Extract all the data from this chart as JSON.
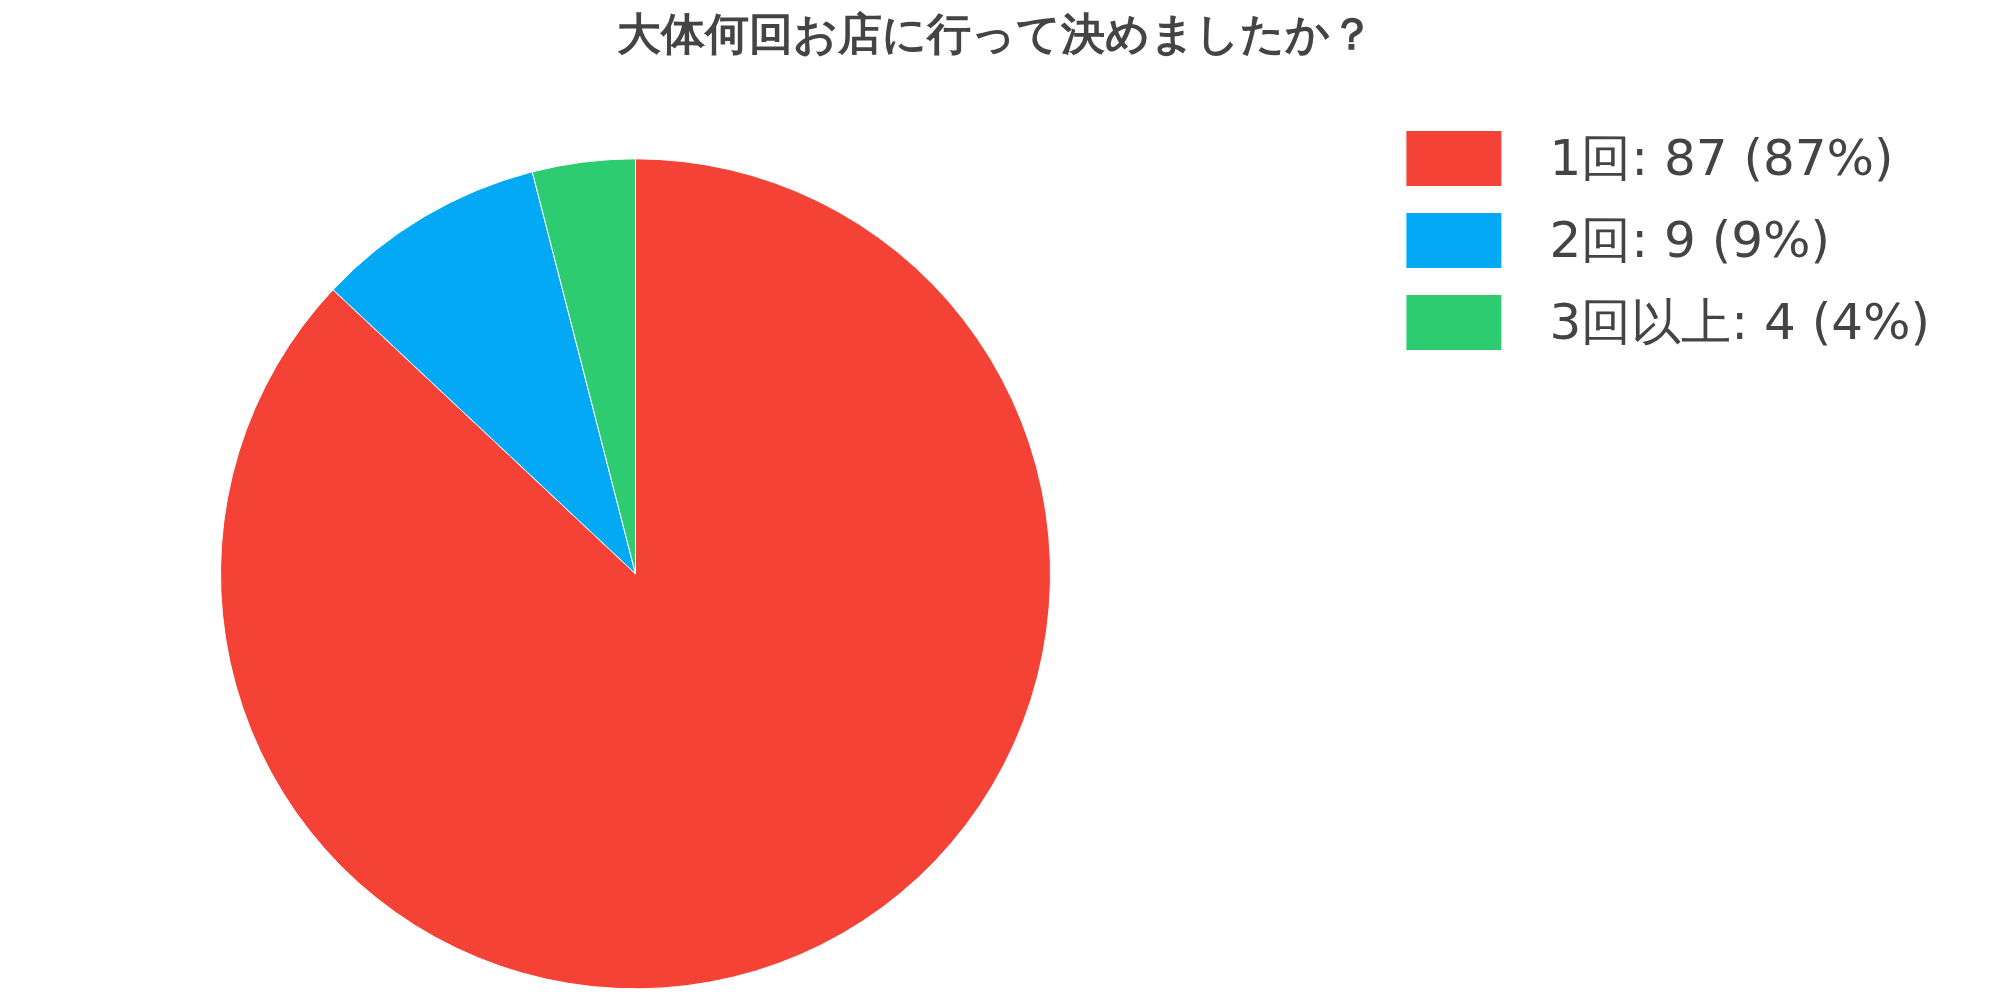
{
  "chart_data": {
    "type": "pie",
    "title": "大体何回お店に行って決めましたか？",
    "categories": [
      "1回: 87 (87%)",
      "2回: 9 (9%)",
      "3回以上: 4 (4%)"
    ],
    "values": [
      87,
      9,
      4
    ],
    "colors": [
      "#f44336",
      "#03a9f4",
      "#2ecc71"
    ],
    "legend": "top right"
  }
}
